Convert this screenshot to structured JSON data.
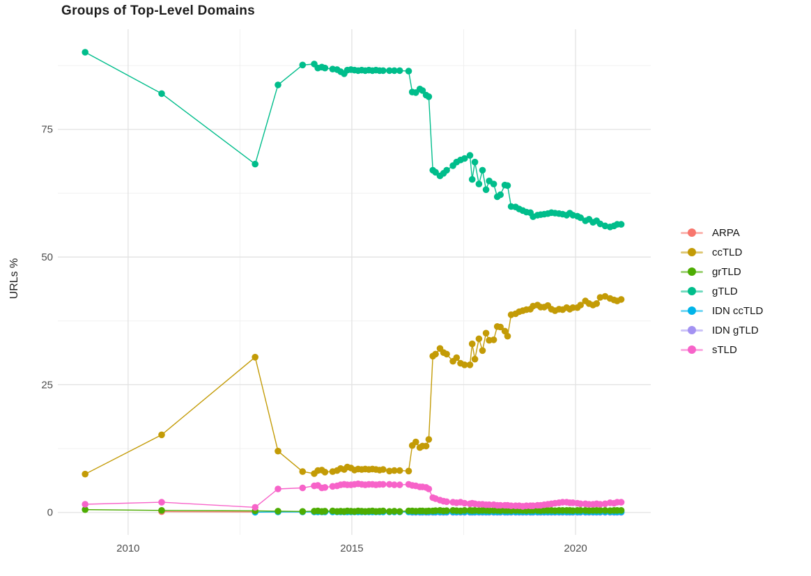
{
  "figure": {
    "title": "Groups of Top-Level Domains",
    "y_axis_title": "URLs %"
  },
  "colors": {
    "grid_major": "#e2e2e2",
    "grid_minor": "#f0f0f0",
    "tick_text": "#4d4d4d",
    "title_text": "#1c1c1c"
  },
  "legend": {
    "items": [
      {
        "label": "ARPA",
        "color": "#F8766D"
      },
      {
        "label": "ccTLD",
        "color": "#C39B06"
      },
      {
        "label": "grTLD",
        "color": "#4DAC02"
      },
      {
        "label": "gTLD",
        "color": "#00BD8B"
      },
      {
        "label": "IDN ccTLD",
        "color": "#00B4E9"
      },
      {
        "label": "IDN gTLD",
        "color": "#A392F2"
      },
      {
        "label": "sTLD",
        "color": "#F763C9"
      }
    ]
  },
  "chart_data": {
    "type": "line",
    "title": "Groups of Top-Level Domains",
    "xlabel": "",
    "ylabel": "URLs %",
    "xlim": [
      2008.43,
      2021.68
    ],
    "ylim": [
      -4.4,
      94.6
    ],
    "x_ticks": {
      "major": [
        2010,
        2015,
        2020
      ],
      "labels": [
        "2010",
        "2015",
        "2020"
      ],
      "minor": [
        2012.5,
        2017.5
      ]
    },
    "y_ticks": {
      "major": [
        0,
        25,
        50,
        75
      ],
      "labels": [
        "0",
        "25",
        "50",
        "75"
      ],
      "minor": [
        12.5,
        37.5,
        62.5,
        87.5
      ]
    },
    "grid": "major+minor",
    "legend_position": "right",
    "marker_radius": 4.8,
    "line_width": 1.4,
    "series": [
      {
        "name": "ARPA",
        "color": "#F8766D",
        "x": [
          2010.75,
          2012.84
        ],
        "y": [
          0.15,
          0.1
        ]
      },
      {
        "name": "IDN gTLD",
        "color": "#A392F2",
        "x": [
          2016.35,
          2016.43,
          2016.52,
          2016.58,
          2016.66,
          2016.72,
          2016.81,
          2016.87,
          2016.97,
          2017.05,
          2017.12,
          2017.26,
          2017.34,
          2017.43,
          2017.52,
          2017.64,
          2017.69,
          2017.75,
          2017.84,
          2017.92,
          2018.0,
          2018.07,
          2018.17,
          2018.25,
          2018.32,
          2018.42,
          2018.48,
          2018.56,
          2018.66,
          2018.74,
          2018.82,
          2018.9,
          2018.99,
          2019.05,
          2019.15,
          2019.22,
          2019.3,
          2019.38,
          2019.46,
          2019.54,
          2019.63,
          2019.71,
          2019.8,
          2019.87,
          2019.94,
          2020.04,
          2020.11,
          2020.22,
          2020.3,
          2020.39,
          2020.47,
          2020.55,
          2020.66,
          2020.77,
          2020.86,
          2020.93,
          2021.02
        ],
        "y": [
          0.02,
          0.02,
          0.02,
          0.02,
          0.02,
          0.02,
          0.02,
          0.02,
          0.02,
          0.02,
          0.02,
          0.02,
          0.02,
          0.02,
          0.02,
          0.02,
          0.02,
          0.02,
          0.02,
          0.02,
          0.02,
          0.02,
          0.02,
          0.02,
          0.02,
          0.02,
          0.02,
          0.02,
          0.02,
          0.02,
          0.02,
          0.02,
          0.02,
          0.02,
          0.02,
          0.02,
          0.02,
          0.02,
          0.02,
          0.02,
          0.02,
          0.02,
          0.02,
          0.02,
          0.02,
          0.02,
          0.02,
          0.02,
          0.02,
          0.02,
          0.02,
          0.02,
          0.02,
          0.02,
          0.02,
          0.02,
          0.02
        ]
      },
      {
        "name": "IDN ccTLD",
        "color": "#00B4E9",
        "x": [
          2012.84,
          2013.35,
          2013.9,
          2014.16,
          2014.24,
          2014.33,
          2014.4,
          2014.57,
          2014.67,
          2014.75,
          2014.83,
          2014.9,
          2014.98,
          2015.06,
          2015.14,
          2015.22,
          2015.3,
          2015.38,
          2015.46,
          2015.54,
          2015.62,
          2015.7,
          2015.84,
          2015.95,
          2016.07,
          2016.27,
          2016.35,
          2016.43,
          2016.52,
          2016.58,
          2016.66,
          2016.72,
          2016.81,
          2016.87,
          2016.97,
          2017.05,
          2017.12,
          2017.26,
          2017.34,
          2017.43,
          2017.52,
          2017.64,
          2017.69,
          2017.75,
          2017.84,
          2017.92,
          2018.0,
          2018.07,
          2018.17,
          2018.25,
          2018.32,
          2018.42,
          2018.48,
          2018.56,
          2018.66,
          2018.74,
          2018.82,
          2018.9,
          2018.99,
          2019.05,
          2019.15,
          2019.22,
          2019.3,
          2019.38,
          2019.46,
          2019.54,
          2019.63,
          2019.71,
          2019.8,
          2019.87,
          2019.94,
          2020.04,
          2020.11,
          2020.22,
          2020.3,
          2020.39,
          2020.47,
          2020.55,
          2020.66,
          2020.77,
          2020.86,
          2020.93,
          2021.02
        ],
        "y": [
          0.05,
          0.1,
          0.1,
          0.1,
          0.1,
          0.1,
          0.1,
          0.1,
          0.1,
          0.1,
          0.1,
          0.1,
          0.1,
          0.1,
          0.1,
          0.1,
          0.1,
          0.1,
          0.1,
          0.1,
          0.1,
          0.1,
          0.1,
          0.1,
          0.1,
          0.1,
          0.1,
          0.1,
          0.1,
          0.1,
          0.1,
          0.1,
          0.1,
          0.1,
          0.1,
          0.1,
          0.1,
          0.1,
          0.1,
          0.1,
          0.1,
          0.1,
          0.1,
          0.1,
          0.1,
          0.1,
          0.1,
          0.1,
          0.1,
          0.1,
          0.1,
          0.1,
          0.1,
          0.1,
          0.1,
          0.1,
          0.1,
          0.1,
          0.1,
          0.1,
          0.1,
          0.1,
          0.1,
          0.1,
          0.1,
          0.1,
          0.1,
          0.1,
          0.1,
          0.1,
          0.1,
          0.1,
          0.1,
          0.1,
          0.1,
          0.1,
          0.1,
          0.1,
          0.1,
          0.1,
          0.1,
          0.1,
          0.1
        ]
      },
      {
        "name": "grTLD",
        "color": "#4DAC02",
        "x": [
          2009.04,
          2010.75,
          2012.84,
          2013.35,
          2013.9,
          2014.16,
          2014.24,
          2014.33,
          2014.4,
          2014.57,
          2014.67,
          2014.75,
          2014.83,
          2014.9,
          2014.98,
          2015.06,
          2015.14,
          2015.22,
          2015.3,
          2015.38,
          2015.46,
          2015.54,
          2015.62,
          2015.7,
          2015.84,
          2015.95,
          2016.07,
          2016.27,
          2016.35,
          2016.43,
          2016.52,
          2016.58,
          2016.66,
          2016.72,
          2016.81,
          2016.87,
          2016.97,
          2017.05,
          2017.12,
          2017.26,
          2017.34,
          2017.43,
          2017.52,
          2017.64,
          2017.69,
          2017.75,
          2017.84,
          2017.92,
          2018.0,
          2018.07,
          2018.17,
          2018.25,
          2018.32,
          2018.42,
          2018.48,
          2018.56,
          2018.66,
          2018.74,
          2018.82,
          2018.9,
          2018.99,
          2019.05,
          2019.15,
          2019.22,
          2019.3,
          2019.38,
          2019.46,
          2019.54,
          2019.63,
          2019.71,
          2019.8,
          2019.87,
          2019.94,
          2020.04,
          2020.11,
          2020.22,
          2020.3,
          2020.39,
          2020.47,
          2020.55,
          2020.66,
          2020.77,
          2020.86,
          2020.93,
          2021.02
        ],
        "y": [
          0.55,
          0.4,
          0.3,
          0.25,
          0.2,
          0.25,
          0.3,
          0.2,
          0.25,
          0.3,
          0.2,
          0.25,
          0.2,
          0.3,
          0.25,
          0.2,
          0.3,
          0.25,
          0.2,
          0.25,
          0.3,
          0.2,
          0.25,
          0.3,
          0.2,
          0.25,
          0.2,
          0.3,
          0.3,
          0.25,
          0.3,
          0.3,
          0.25,
          0.3,
          0.3,
          0.35,
          0.4,
          0.3,
          0.35,
          0.4,
          0.35,
          0.3,
          0.4,
          0.4,
          0.35,
          0.4,
          0.35,
          0.4,
          0.4,
          0.35,
          0.4,
          0.4,
          0.35,
          0.4,
          0.4,
          0.35,
          0.4,
          0.4,
          0.4,
          0.35,
          0.4,
          0.4,
          0.4,
          0.35,
          0.4,
          0.4,
          0.4,
          0.35,
          0.4,
          0.4,
          0.4,
          0.4,
          0.35,
          0.4,
          0.4,
          0.4,
          0.35,
          0.4,
          0.4,
          0.4,
          0.4,
          0.35,
          0.4,
          0.4,
          0.4
        ]
      },
      {
        "name": "sTLD",
        "color": "#F763C9",
        "x": [
          2009.04,
          2010.75,
          2012.84,
          2013.35,
          2013.9,
          2014.16,
          2014.24,
          2014.33,
          2014.4,
          2014.57,
          2014.67,
          2014.75,
          2014.83,
          2014.9,
          2014.98,
          2015.06,
          2015.14,
          2015.22,
          2015.3,
          2015.38,
          2015.46,
          2015.54,
          2015.62,
          2015.7,
          2015.84,
          2015.95,
          2016.07,
          2016.27,
          2016.35,
          2016.43,
          2016.52,
          2016.58,
          2016.66,
          2016.72,
          2016.81,
          2016.87,
          2016.97,
          2017.05,
          2017.12,
          2017.26,
          2017.34,
          2017.43,
          2017.52,
          2017.64,
          2017.69,
          2017.75,
          2017.84,
          2017.92,
          2018.0,
          2018.07,
          2018.17,
          2018.25,
          2018.32,
          2018.42,
          2018.48,
          2018.56,
          2018.66,
          2018.74,
          2018.82,
          2018.9,
          2018.99,
          2019.05,
          2019.15,
          2019.22,
          2019.3,
          2019.38,
          2019.46,
          2019.54,
          2019.63,
          2019.71,
          2019.8,
          2019.87,
          2019.94,
          2020.04,
          2020.11,
          2020.22,
          2020.3,
          2020.39,
          2020.47,
          2020.55,
          2020.66,
          2020.77,
          2020.86,
          2020.93,
          2021.02
        ],
        "y": [
          1.6,
          2.0,
          1.0,
          4.6,
          4.8,
          5.2,
          5.3,
          4.8,
          4.9,
          5.1,
          5.2,
          5.4,
          5.5,
          5.4,
          5.4,
          5.5,
          5.6,
          5.5,
          5.4,
          5.5,
          5.5,
          5.4,
          5.5,
          5.5,
          5.5,
          5.4,
          5.4,
          5.5,
          5.3,
          5.2,
          5.0,
          5.0,
          4.9,
          4.6,
          2.9,
          2.7,
          2.4,
          2.2,
          2.1,
          2.0,
          1.9,
          2.0,
          1.8,
          1.7,
          1.8,
          1.7,
          1.6,
          1.6,
          1.5,
          1.5,
          1.5,
          1.4,
          1.4,
          1.4,
          1.4,
          1.3,
          1.3,
          1.3,
          1.2,
          1.3,
          1.3,
          1.3,
          1.4,
          1.4,
          1.5,
          1.6,
          1.7,
          1.8,
          1.9,
          2.0,
          2.0,
          1.9,
          1.9,
          1.8,
          1.7,
          1.7,
          1.6,
          1.6,
          1.7,
          1.6,
          1.7,
          1.9,
          1.8,
          2.0,
          2.0
        ]
      },
      {
        "name": "ccTLD",
        "color": "#C39B06",
        "x": [
          2009.04,
          2010.75,
          2012.84,
          2013.35,
          2013.9,
          2014.16,
          2014.24,
          2014.33,
          2014.4,
          2014.57,
          2014.67,
          2014.75,
          2014.83,
          2014.9,
          2014.98,
          2015.06,
          2015.14,
          2015.22,
          2015.3,
          2015.38,
          2015.46,
          2015.54,
          2015.62,
          2015.7,
          2015.84,
          2015.95,
          2016.07,
          2016.27,
          2016.35,
          2016.43,
          2016.52,
          2016.58,
          2016.66,
          2016.72,
          2016.81,
          2016.87,
          2016.97,
          2017.05,
          2017.12,
          2017.26,
          2017.34,
          2017.43,
          2017.52,
          2017.64,
          2017.69,
          2017.75,
          2017.84,
          2017.92,
          2018.0,
          2018.07,
          2018.17,
          2018.25,
          2018.32,
          2018.42,
          2018.48,
          2018.56,
          2018.66,
          2018.74,
          2018.82,
          2018.9,
          2018.99,
          2019.05,
          2019.15,
          2019.22,
          2019.3,
          2019.38,
          2019.46,
          2019.54,
          2019.63,
          2019.71,
          2019.8,
          2019.87,
          2019.94,
          2020.04,
          2020.11,
          2020.22,
          2020.3,
          2020.39,
          2020.47,
          2020.55,
          2020.66,
          2020.77,
          2020.86,
          2020.93,
          2021.02
        ],
        "y": [
          7.5,
          15.2,
          30.4,
          12.0,
          8.0,
          7.6,
          8.2,
          8.3,
          7.9,
          8.0,
          8.2,
          8.6,
          8.4,
          8.9,
          8.7,
          8.3,
          8.5,
          8.4,
          8.5,
          8.4,
          8.5,
          8.4,
          8.3,
          8.4,
          8.1,
          8.2,
          8.2,
          8.1,
          13.1,
          13.8,
          12.7,
          13.0,
          13.0,
          14.3,
          30.6,
          31.0,
          32.1,
          31.3,
          31.0,
          29.6,
          30.3,
          29.2,
          28.9,
          28.9,
          33.0,
          30.0,
          34.0,
          31.7,
          35.1,
          33.7,
          33.8,
          36.4,
          36.3,
          35.5,
          34.5,
          38.7,
          38.9,
          39.3,
          39.5,
          39.7,
          39.8,
          40.4,
          40.6,
          40.2,
          40.2,
          40.5,
          39.8,
          39.5,
          39.8,
          39.7,
          40.1,
          39.8,
          40.1,
          40.1,
          40.6,
          41.4,
          40.9,
          40.6,
          40.9,
          42.1,
          42.3,
          41.9,
          41.6,
          41.4,
          41.7
        ]
      },
      {
        "name": "gTLD",
        "color": "#00BD8B",
        "x": [
          2009.04,
          2010.75,
          2012.84,
          2013.35,
          2013.9,
          2014.16,
          2014.24,
          2014.33,
          2014.4,
          2014.57,
          2014.67,
          2014.75,
          2014.83,
          2014.9,
          2014.98,
          2015.06,
          2015.14,
          2015.22,
          2015.3,
          2015.38,
          2015.46,
          2015.54,
          2015.62,
          2015.7,
          2015.84,
          2015.95,
          2016.07,
          2016.27,
          2016.35,
          2016.43,
          2016.52,
          2016.58,
          2016.66,
          2016.72,
          2016.81,
          2016.87,
          2016.97,
          2017.05,
          2017.12,
          2017.26,
          2017.34,
          2017.43,
          2017.52,
          2017.64,
          2017.69,
          2017.75,
          2017.84,
          2017.92,
          2018.0,
          2018.07,
          2018.17,
          2018.25,
          2018.32,
          2018.42,
          2018.48,
          2018.56,
          2018.66,
          2018.74,
          2018.82,
          2018.9,
          2018.99,
          2019.05,
          2019.15,
          2019.22,
          2019.3,
          2019.38,
          2019.46,
          2019.54,
          2019.63,
          2019.71,
          2019.8,
          2019.87,
          2019.94,
          2020.04,
          2020.11,
          2020.22,
          2020.3,
          2020.39,
          2020.47,
          2020.55,
          2020.66,
          2020.77,
          2020.86,
          2020.93,
          2021.02
        ],
        "y": [
          90.1,
          82.0,
          68.2,
          83.7,
          87.6,
          87.8,
          87.0,
          87.2,
          87.0,
          86.8,
          86.7,
          86.3,
          85.9,
          86.6,
          86.7,
          86.6,
          86.5,
          86.6,
          86.5,
          86.6,
          86.5,
          86.6,
          86.5,
          86.5,
          86.5,
          86.5,
          86.5,
          86.4,
          82.3,
          82.2,
          82.9,
          82.6,
          81.7,
          81.4,
          67.0,
          66.6,
          65.9,
          66.4,
          67.0,
          67.9,
          68.6,
          69.0,
          69.3,
          69.9,
          65.2,
          68.6,
          64.3,
          67.0,
          63.2,
          64.9,
          64.3,
          61.8,
          62.2,
          64.1,
          64.0,
          59.9,
          59.8,
          59.4,
          59.1,
          58.8,
          58.7,
          57.9,
          58.2,
          58.3,
          58.4,
          58.5,
          58.7,
          58.6,
          58.5,
          58.4,
          58.2,
          58.6,
          58.2,
          58.0,
          57.7,
          57.1,
          57.4,
          56.8,
          57.1,
          56.5,
          56.1,
          55.9,
          56.1,
          56.4,
          56.4
        ]
      }
    ]
  }
}
